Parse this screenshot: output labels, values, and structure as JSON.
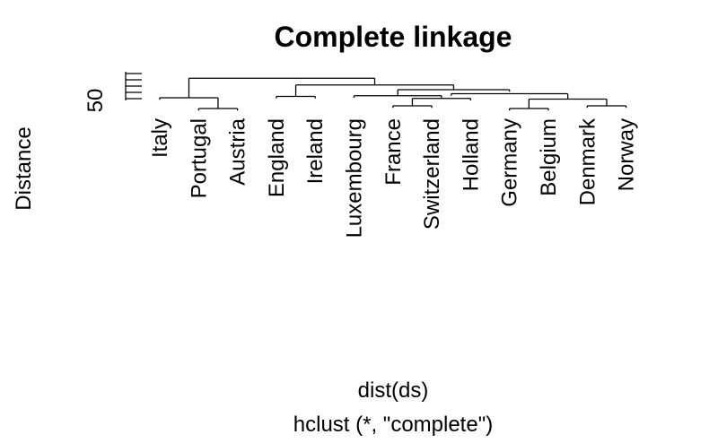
{
  "chart_data": {
    "type": "dendrogram",
    "title": "Complete linkage",
    "xlabel": "dist(ds)",
    "sub": "hclust (*, \"complete\")",
    "ylabel": "Distance",
    "yticks": [
      50
    ],
    "leaves": [
      "Italy",
      "Portugal",
      "Austria",
      "England",
      "Ireland",
      "Luxembourg",
      "France",
      "Switzerland",
      "Holland",
      "Germany",
      "Belgium",
      "Denmark",
      "Norway"
    ],
    "merges": [
      {
        "a": 2,
        "b": 3,
        "height": 36
      },
      {
        "a": 7,
        "b": 8,
        "height": 40
      },
      {
        "a": 10,
        "b": 11,
        "height": 36
      },
      {
        "a": 12,
        "b": 13,
        "height": 40
      },
      {
        "a": 7.5,
        "b": 9,
        "height": 51
      },
      {
        "a": 10.5,
        "b": 12.5,
        "height": 50
      },
      {
        "a": 1,
        "b": 2.5,
        "height": 52
      },
      {
        "a": 4,
        "b": 5,
        "height": 54
      },
      {
        "a": 6,
        "b": 8.25,
        "height": 55
      },
      {
        "a": 8.5,
        "b": 11.5,
        "height": 58
      },
      {
        "a": 7.125,
        "b": 10,
        "height": 64
      },
      {
        "a": 4.5,
        "b": 8.5625,
        "height": 71
      },
      {
        "a": 1.75,
        "b": 6.53125,
        "height": 81
      }
    ]
  }
}
